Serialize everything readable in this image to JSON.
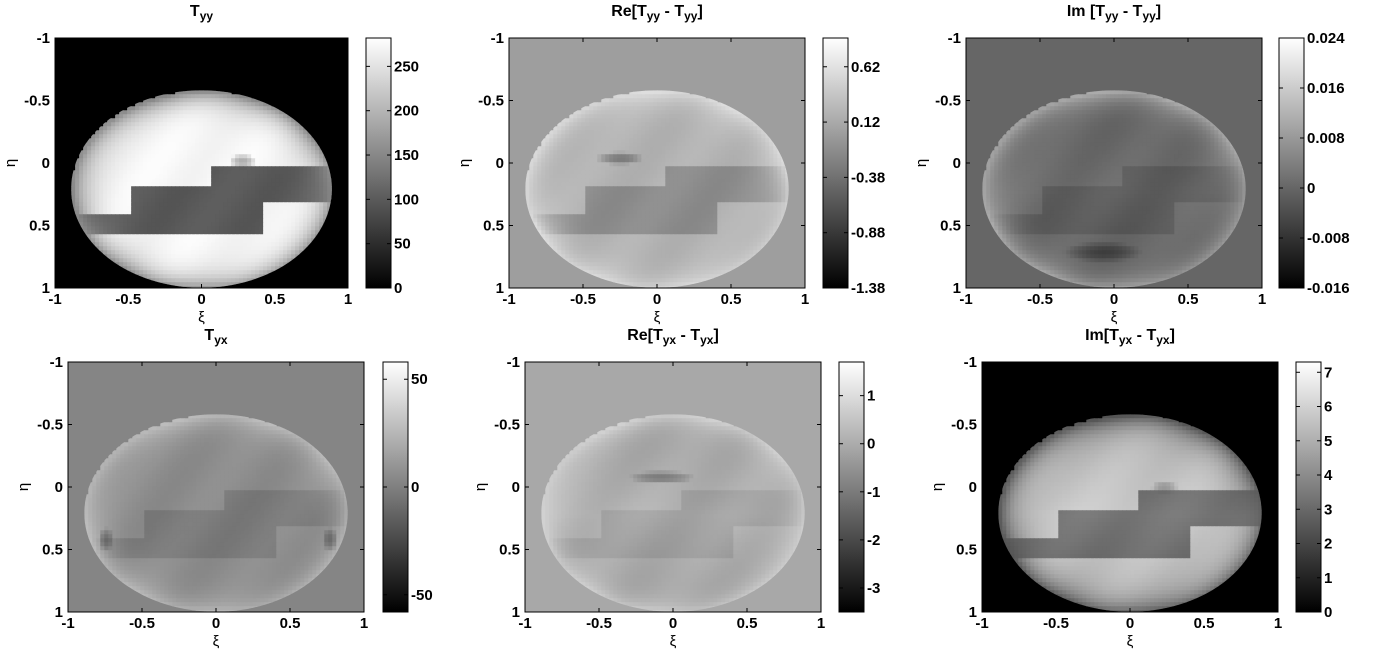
{
  "chart_data": [
    {
      "type": "heatmap",
      "title": "Tyy",
      "title_parts": [
        [
          "T",
          ""
        ],
        [
          "yy",
          "sub"
        ]
      ],
      "xlabel": "ξ",
      "ylabel": "η",
      "xlim": [
        -1,
        1
      ],
      "ylim": [
        -1,
        1
      ],
      "y_reversed": true,
      "x_ticks": [
        "-1",
        "-0.5",
        "0",
        "0.5",
        "1"
      ],
      "y_ticks": [
        "-1",
        "-0.5",
        "0",
        "0.5",
        "1"
      ],
      "colorbar": {
        "ticks": [
          "0",
          "50",
          "100",
          "150",
          "200",
          "250"
        ],
        "range": [
          0,
          282
        ]
      },
      "colormap": "gray",
      "background_level": 0.0
    },
    {
      "type": "heatmap",
      "title": "Re[Tyy - Tyy]",
      "title_parts": [
        [
          "Re[T",
          ""
        ],
        [
          "yy",
          "sub"
        ],
        [
          " - T",
          ""
        ],
        [
          "yy",
          "sub"
        ],
        [
          "]",
          ""
        ]
      ],
      "xlabel": "ξ",
      "ylabel": "η",
      "xlim": [
        -1,
        1
      ],
      "ylim": [
        -1,
        1
      ],
      "y_reversed": true,
      "x_ticks": [
        "-1",
        "-0.5",
        "0",
        "0.5",
        "1"
      ],
      "y_ticks": [
        "-1",
        "-0.5",
        "0",
        "0.5",
        "1"
      ],
      "colorbar": {
        "ticks": [
          "-1.38",
          "-0.88",
          "-0.38",
          "0.12",
          "0.62"
        ],
        "range": [
          -1.38,
          0.88
        ]
      },
      "colormap": "gray",
      "background_level": 0.62
    },
    {
      "type": "heatmap",
      "title": "Im [Tyy - Tyy]",
      "title_parts": [
        [
          "Im [T",
          ""
        ],
        [
          "yy",
          "sub"
        ],
        [
          " - T",
          ""
        ],
        [
          "yy",
          "sub"
        ],
        [
          "]",
          ""
        ]
      ],
      "xlabel": "ξ",
      "ylabel": "η",
      "xlim": [
        -1,
        1
      ],
      "ylim": [
        -1,
        1
      ],
      "y_reversed": true,
      "x_ticks": [
        "-1",
        "-0.5",
        "0",
        "0.5",
        "1"
      ],
      "y_ticks": [
        "-1",
        "-0.5",
        "0",
        "0.5",
        "1"
      ],
      "colorbar": {
        "ticks": [
          "-0.016",
          "-0.008",
          "0",
          "0.008",
          "0.016",
          "0.024"
        ],
        "range": [
          -0.016,
          0.024
        ]
      },
      "colormap": "gray",
      "background_level": 0.4
    },
    {
      "type": "heatmap",
      "title": "Tyx",
      "title_parts": [
        [
          "T",
          ""
        ],
        [
          "yx",
          "sub"
        ]
      ],
      "xlabel": "ξ",
      "ylabel": "η",
      "xlim": [
        -1,
        1
      ],
      "ylim": [
        -1,
        1
      ],
      "y_reversed": true,
      "x_ticks": [
        "-1",
        "-0.5",
        "0",
        "0.5",
        "1"
      ],
      "y_ticks": [
        "-1",
        "-0.5",
        "0",
        "0.5",
        "1"
      ],
      "colorbar": {
        "ticks": [
          "-50",
          "0",
          "50"
        ],
        "range": [
          -58,
          58
        ]
      },
      "colormap": "gray",
      "background_level": 0.52
    },
    {
      "type": "heatmap",
      "title": "Re[Tyx - Tyx]",
      "title_parts": [
        [
          "Re[T",
          ""
        ],
        [
          "yx",
          "sub"
        ],
        [
          " - T",
          ""
        ],
        [
          "yx",
          "sub"
        ],
        [
          "]",
          ""
        ]
      ],
      "xlabel": "ξ",
      "ylabel": "η",
      "xlim": [
        -1,
        1
      ],
      "ylim": [
        -1,
        1
      ],
      "y_reversed": true,
      "x_ticks": [
        "-1",
        "-0.5",
        "0",
        "0.5",
        "1"
      ],
      "y_ticks": [
        "-1",
        "-0.5",
        "0",
        "0.5",
        "1"
      ],
      "colorbar": {
        "ticks": [
          "-3",
          "-2",
          "-1",
          "0",
          "1"
        ],
        "range": [
          -3.5,
          1.7
        ]
      },
      "colormap": "gray",
      "background_level": 0.66
    },
    {
      "type": "heatmap",
      "title": "Im[Tyx - Tyx]",
      "title_parts": [
        [
          "Im[T",
          ""
        ],
        [
          "yx",
          "sub"
        ],
        [
          " - T",
          ""
        ],
        [
          "yx",
          "sub"
        ],
        [
          "]",
          ""
        ]
      ],
      "xlabel": "ξ",
      "ylabel": "η",
      "xlim": [
        -1,
        1
      ],
      "ylim": [
        -1,
        1
      ],
      "y_reversed": true,
      "x_ticks": [
        "-1",
        "-0.5",
        "0",
        "0.5",
        "1"
      ],
      "y_ticks": [
        "-1",
        "-0.5",
        "0",
        "0.5",
        "1"
      ],
      "colorbar": {
        "ticks": [
          "0",
          "1",
          "2",
          "3",
          "4",
          "5",
          "6",
          "7"
        ],
        "range": [
          0,
          7.3
        ]
      },
      "colormap": "gray",
      "background_level": 0.0
    }
  ]
}
